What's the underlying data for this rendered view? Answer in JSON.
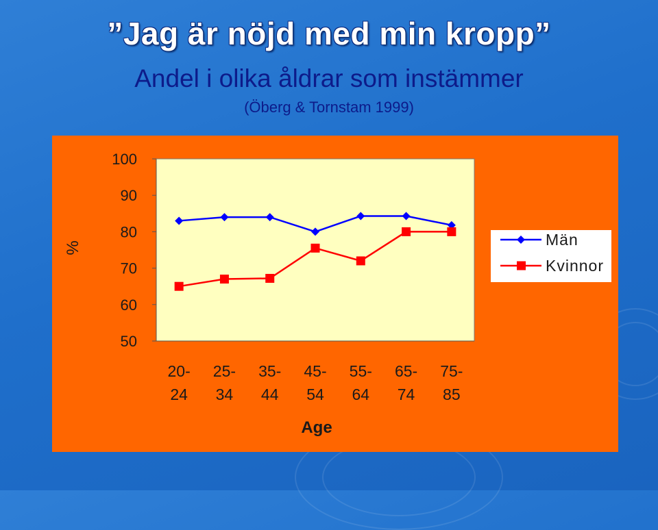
{
  "slide": {
    "title": "”Jag är nöjd med min kropp”",
    "subtitle": "Andel i olika åldrar som instämmer",
    "source": "(Öberg & Tornstam 1999)"
  },
  "colors": {
    "panel": "#ff6600",
    "plot_bg": "#ffffc0",
    "man": "#0000ff",
    "kvinnor": "#ff0000"
  },
  "chart_data": {
    "type": "line",
    "title": "",
    "xlabel": "Age",
    "ylabel": "%",
    "categories": [
      [
        "20-",
        "24"
      ],
      [
        "25-",
        "34"
      ],
      [
        "35-",
        "44"
      ],
      [
        "45-",
        "54"
      ],
      [
        "55-",
        "64"
      ],
      [
        "65-",
        "74"
      ],
      [
        "75-",
        "85"
      ]
    ],
    "ylim": [
      50,
      100
    ],
    "yticks": [
      "100",
      "90",
      "80",
      "70",
      "60",
      "50"
    ],
    "ytick_values": [
      100,
      90,
      80,
      70,
      60,
      50
    ],
    "legend_position": "right",
    "series": [
      {
        "name": "Män",
        "marker": "diamond",
        "color": "#0000ff",
        "values": [
          83,
          84,
          84,
          80,
          84.3,
          84.3,
          81.8
        ]
      },
      {
        "name": "Kvinnor",
        "marker": "square",
        "color": "#ff0000",
        "values": [
          65,
          67,
          67.2,
          75.5,
          72,
          80,
          80
        ]
      }
    ]
  }
}
